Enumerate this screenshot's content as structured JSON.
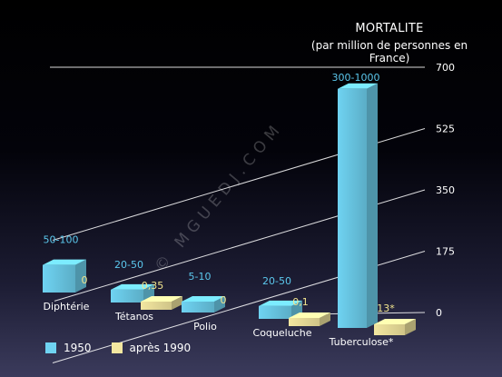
{
  "title": {
    "line1": "MORTALITE",
    "line2": "(par million de personnes en France)"
  },
  "watermark": "© MGUEDJ.COM",
  "colors": {
    "series_1950": "#6fd3f2",
    "series_1990": "#f3e7a0",
    "label_1950": "#5bc7ec",
    "label_1990": "#f1e48e"
  },
  "chart_data": {
    "type": "bar",
    "categories": [
      "Diphtérie",
      "Tétanos",
      "Polio",
      "Coqueluche",
      "Tuberculose*"
    ],
    "series": [
      {
        "name": "1950",
        "values": [
          75,
          35,
          7.5,
          35,
          650
        ],
        "labels": [
          "50-100",
          "20-50",
          "5-10",
          "20-50",
          "300-1000"
        ]
      },
      {
        "name": "après 1990",
        "values": [
          0,
          0.35,
          0,
          0.1,
          13
        ],
        "labels": [
          "0",
          "0,35",
          "0",
          "0,1",
          "13*"
        ]
      }
    ],
    "yticks": [
      "0",
      "175",
      "350",
      "525",
      "700"
    ],
    "ylim": [
      0,
      700
    ],
    "legend_position": "bottom-left",
    "grid": true
  }
}
